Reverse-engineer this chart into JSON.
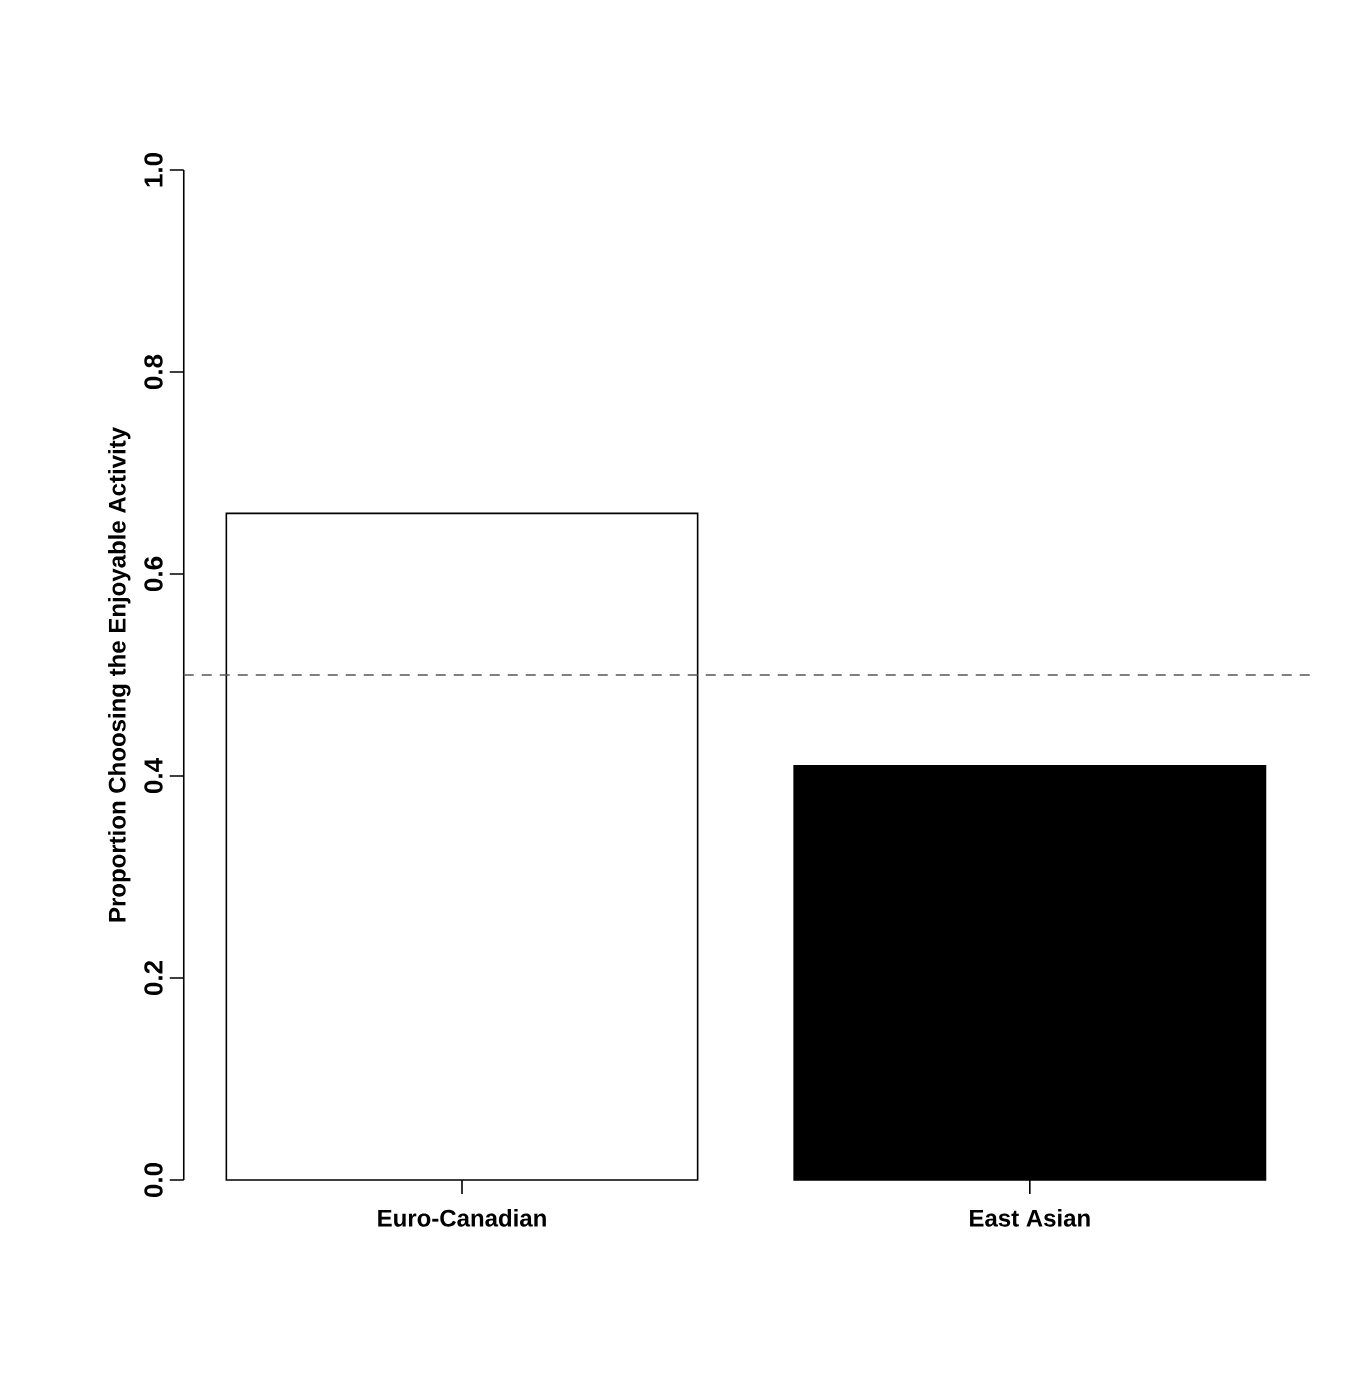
{
  "chart_data": {
    "type": "bar",
    "ylabel": "Proportion Choosing the Enjoyable Activity",
    "categories": [
      "Euro-Canadian",
      "East Asian"
    ],
    "values": [
      0.66,
      0.41
    ],
    "colors": [
      "#ffffff",
      "#000000"
    ],
    "ylim": [
      0,
      1
    ],
    "yticks": [
      {
        "value": 0,
        "label": "0.0"
      },
      {
        "value": 0.2,
        "label": "0.2"
      },
      {
        "value": 0.4,
        "label": "0.4"
      },
      {
        "value": 0.6,
        "label": "0.6"
      },
      {
        "value": 0.8,
        "label": "0.8"
      },
      {
        "value": 1,
        "label": "1.0"
      }
    ],
    "ref_lines": [
      {
        "axis": "y",
        "value": 0.5,
        "color": "#555555",
        "line_style": "dashed"
      }
    ]
  }
}
